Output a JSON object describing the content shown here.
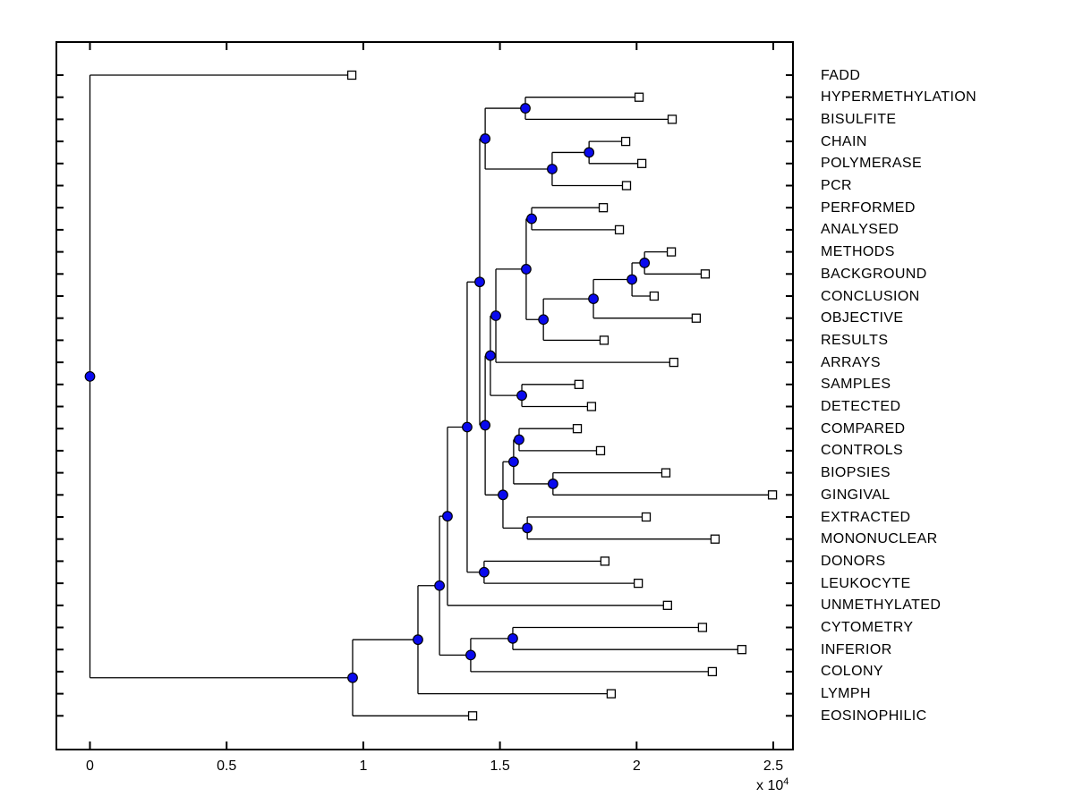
{
  "figure": {
    "background": "#ffffff",
    "style": {
      "box_color": "#000000",
      "branch_color": "#000000",
      "internal_node_fill": "#0a0aee",
      "internal_node_edge": "#000000",
      "leaf_marker_fill": "#ffffff",
      "leaf_marker_edge": "#000000"
    },
    "x_axis": {
      "tick_labels": [
        "0",
        "0.5",
        "1",
        "1.5",
        "2",
        "2.5"
      ],
      "tick_values": [
        0,
        5000,
        10000,
        15000,
        20000,
        25000
      ],
      "multiplier_base": "x 10",
      "multiplier_exponent": "4"
    }
  },
  "chart_data": {
    "type": "dendrogram",
    "orientation": "left-to-right",
    "units": "branch distance (axis scaled by 10^4)",
    "xlim": [
      -1230,
      25720
    ],
    "x_ticks": [
      0,
      5000,
      10000,
      15000,
      20000,
      25000
    ],
    "grid": false,
    "leaves_top_to_bottom": [
      "FADD",
      "HYPERMETHYLATION",
      "BISULFITE",
      "CHAIN",
      "POLYMERASE",
      "PCR",
      "PERFORMED",
      "ANALYSED",
      "METHODS",
      "BACKGROUND",
      "CONCLUSION",
      "OBJECTIVE",
      "RESULTS",
      "ARRAYS",
      "SAMPLES",
      "DETECTED",
      "COMPARED",
      "CONTROLS",
      "BIOPSIES",
      "GINGIVAL",
      "EXTRACTED",
      "MONONUCLEAR",
      "DONORS",
      "LEUKOCYTE",
      "UNMETHYLATED",
      "CYTOMETRY",
      "INFERIOR",
      "COLONY",
      "LYMPH",
      "EOSINOPHILIC"
    ],
    "tree": {
      "x": 0,
      "children": [
        {
          "label": "FADD",
          "x": 9580
        },
        {
          "x": 9610,
          "children": [
            {
              "x": 12000,
              "children": [
                {
                  "x": 12790,
                  "children": [
                    {
                      "x": 13080,
                      "children": [
                        {
                          "x": 13800,
                          "children": [
                            {
                              "x": 14260,
                              "children": [
                                {
                                  "x": 14460,
                                  "children": [
                                    {
                                      "x": 15930,
                                      "children": [
                                        {
                                          "label": "HYPERMETHYLATION",
                                          "x": 20090
                                        },
                                        {
                                          "label": "BISULFITE",
                                          "x": 21300
                                        }
                                      ]
                                    },
                                    {
                                      "x": 16910,
                                      "children": [
                                        {
                                          "x": 18260,
                                          "children": [
                                            {
                                              "label": "CHAIN",
                                              "x": 19600
                                            },
                                            {
                                              "label": "POLYMERASE",
                                              "x": 20190
                                            }
                                          ]
                                        },
                                        {
                                          "label": "PCR",
                                          "x": 19630
                                        }
                                      ]
                                    }
                                  ]
                                },
                                {
                                  "x": 14460,
                                  "children": [
                                    {
                                      "x": 14650,
                                      "children": [
                                        {
                                          "x": 14850,
                                          "children": [
                                            {
                                              "x": 15960,
                                              "children": [
                                                {
                                                  "x": 16160,
                                                  "children": [
                                                    {
                                                      "label": "PERFORMED",
                                                      "x": 18780
                                                    },
                                                    {
                                                      "label": "ANALYSED",
                                                      "x": 19370
                                                    }
                                                  ]
                                                },
                                                {
                                                  "x": 16590,
                                                  "children": [
                                                    {
                                                      "x": 18420,
                                                      "children": [
                                                        {
                                                          "x": 19830,
                                                          "children": [
                                                            {
                                                              "x": 20290,
                                                              "children": [
                                                                {
                                                                  "label": "METHODS",
                                                                  "x": 21270
                                                                },
                                                                {
                                                                  "label": "BACKGROUND",
                                                                  "x": 22510
                                                                }
                                                              ]
                                                            },
                                                            {
                                                              "label": "CONCLUSION",
                                                              "x": 20640
                                                            }
                                                          ]
                                                        },
                                                        {
                                                          "label": "OBJECTIVE",
                                                          "x": 22180
                                                        }
                                                      ]
                                                    },
                                                    {
                                                      "label": "RESULTS",
                                                      "x": 18810
                                                    }
                                                  ]
                                                }
                                              ]
                                            },
                                            {
                                              "label": "ARRAYS",
                                              "x": 21360
                                            }
                                          ]
                                        },
                                        {
                                          "x": 15800,
                                          "children": [
                                            {
                                              "label": "SAMPLES",
                                              "x": 17890
                                            },
                                            {
                                              "label": "DETECTED",
                                              "x": 18350
                                            }
                                          ]
                                        }
                                      ]
                                    },
                                    {
                                      "x": 15110,
                                      "children": [
                                        {
                                          "x": 15500,
                                          "children": [
                                            {
                                              "x": 15700,
                                              "children": [
                                                {
                                                  "label": "COMPARED",
                                                  "x": 17830
                                                },
                                                {
                                                  "label": "CONTROLS",
                                                  "x": 18680
                                                }
                                              ]
                                            },
                                            {
                                              "x": 16940,
                                              "children": [
                                                {
                                                  "label": "BIOPSIES",
                                                  "x": 21070
                                                },
                                                {
                                                  "label": "GINGIVAL",
                                                  "x": 24970
                                                }
                                              ]
                                            }
                                          ]
                                        },
                                        {
                                          "x": 16000,
                                          "children": [
                                            {
                                              "label": "EXTRACTED",
                                              "x": 20350
                                            },
                                            {
                                              "label": "MONONUCLEAR",
                                              "x": 22870
                                            }
                                          ]
                                        }
                                      ]
                                    }
                                  ]
                                }
                              ]
                            },
                            {
                              "x": 14420,
                              "children": [
                                {
                                  "label": "DONORS",
                                  "x": 18840
                                },
                                {
                                  "label": "LEUKOCYTE",
                                  "x": 20060
                                }
                              ]
                            }
                          ]
                        },
                        {
                          "label": "UNMETHYLATED",
                          "x": 21130
                        }
                      ]
                    },
                    {
                      "x": 13930,
                      "children": [
                        {
                          "x": 15470,
                          "children": [
                            {
                              "label": "CYTOMETRY",
                              "x": 22410
                            },
                            {
                              "label": "INFERIOR",
                              "x": 23850
                            }
                          ]
                        },
                        {
                          "label": "COLONY",
                          "x": 22770
                        }
                      ]
                    }
                  ]
                },
                {
                  "label": "LYMPH",
                  "x": 19070
                }
              ]
            },
            {
              "label": "EOSINOPHILIC",
              "x": 14000
            }
          ]
        }
      ]
    }
  }
}
